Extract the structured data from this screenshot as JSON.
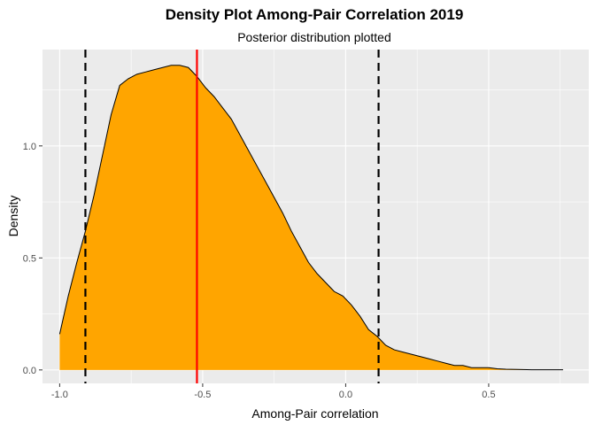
{
  "chart_data": {
    "type": "area",
    "title": "Density Plot Among-Pair Correlation 2019",
    "subtitle": "Posterior distribution plotted",
    "xlabel": "Among-Pair correlation",
    "ylabel": "Density",
    "xlim": [
      -1.06,
      0.85
    ],
    "ylim": [
      -0.06,
      1.43
    ],
    "x_ticks": [
      -1.0,
      -0.5,
      0.0,
      0.5
    ],
    "x_tick_labels": [
      "-1.0",
      "-0.5",
      "0.0",
      "0.5"
    ],
    "y_ticks": [
      0.0,
      0.5,
      1.0
    ],
    "y_tick_labels": [
      "0.0",
      "0.5",
      "1.0"
    ],
    "grid": true,
    "fill_color": "#FFA500",
    "background_color": "#EBEBEB",
    "series": [
      {
        "x": [
          -1.0,
          -0.97,
          -0.94,
          -0.91,
          -0.88,
          -0.85,
          -0.82,
          -0.79,
          -0.76,
          -0.73,
          -0.7,
          -0.67,
          -0.64,
          -0.61,
          -0.58,
          -0.55,
          -0.52,
          -0.49,
          -0.46,
          -0.43,
          -0.4,
          -0.37,
          -0.34,
          -0.31,
          -0.28,
          -0.25,
          -0.22,
          -0.19,
          -0.16,
          -0.13,
          -0.1,
          -0.07,
          -0.04,
          -0.01,
          0.02,
          0.05,
          0.08,
          0.11,
          0.14,
          0.17,
          0.2,
          0.23,
          0.26,
          0.29,
          0.32,
          0.35,
          0.38,
          0.41,
          0.44,
          0.47,
          0.5,
          0.53,
          0.56,
          0.6,
          0.65,
          0.7,
          0.76
        ],
        "y": [
          0.16,
          0.33,
          0.48,
          0.62,
          0.78,
          0.96,
          1.14,
          1.27,
          1.3,
          1.32,
          1.33,
          1.34,
          1.35,
          1.36,
          1.36,
          1.35,
          1.31,
          1.26,
          1.22,
          1.17,
          1.12,
          1.05,
          0.98,
          0.91,
          0.84,
          0.77,
          0.7,
          0.62,
          0.55,
          0.48,
          0.43,
          0.39,
          0.35,
          0.33,
          0.29,
          0.24,
          0.18,
          0.15,
          0.11,
          0.09,
          0.08,
          0.07,
          0.06,
          0.05,
          0.04,
          0.03,
          0.02,
          0.02,
          0.01,
          0.01,
          0.01,
          0.005,
          0.003,
          0.002,
          0.001,
          0.001,
          0.001
        ]
      }
    ],
    "vlines": [
      {
        "x": -0.91,
        "style": "dashed",
        "color": "#000000"
      },
      {
        "x": -0.52,
        "style": "solid",
        "color": "#FF0000"
      },
      {
        "x": 0.115,
        "style": "dashed",
        "color": "#000000"
      }
    ]
  }
}
